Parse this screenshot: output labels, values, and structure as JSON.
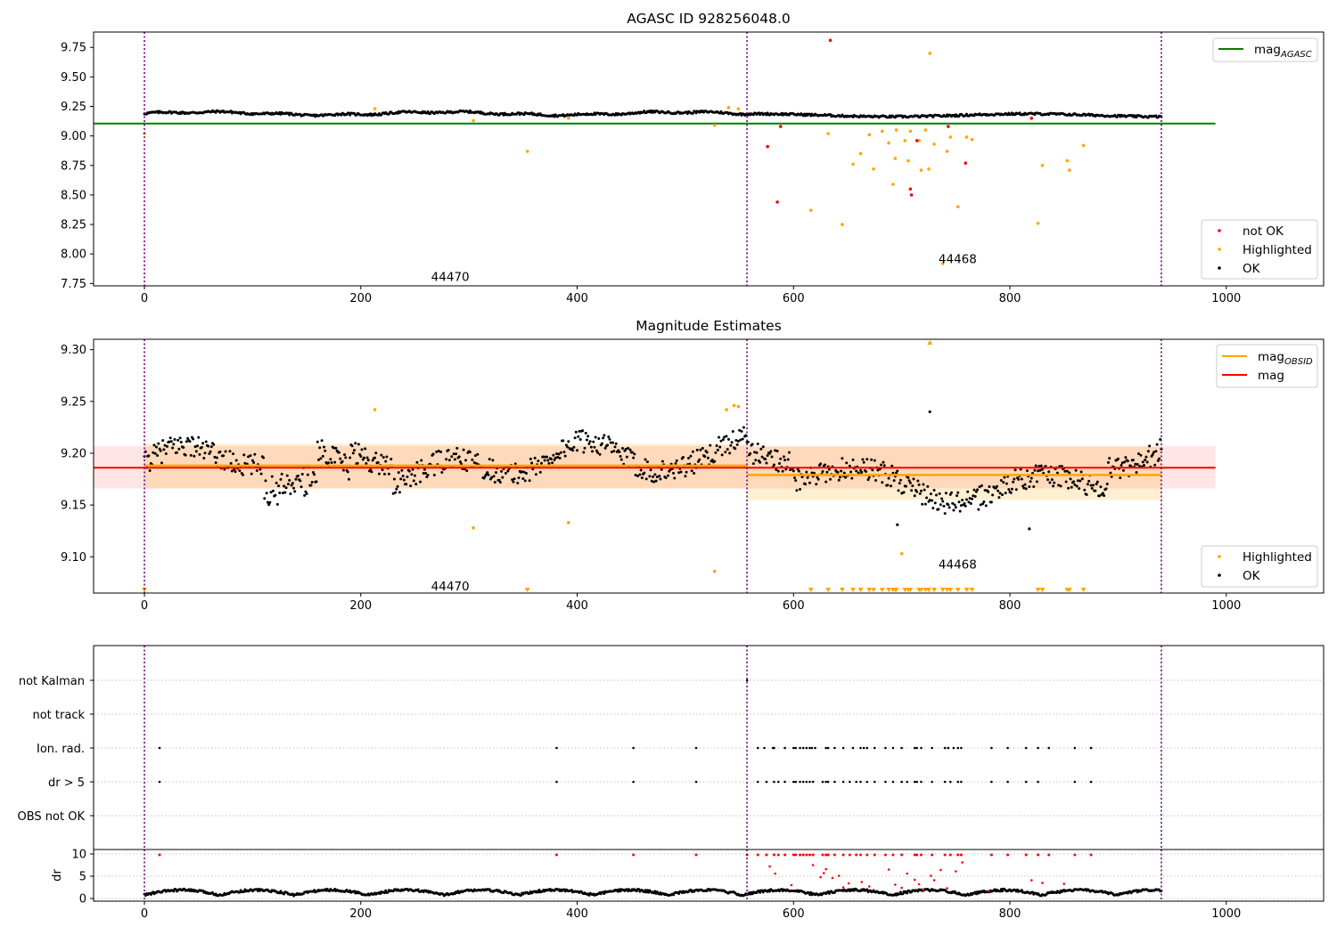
{
  "chart_data": [
    {
      "type": "scatter",
      "title": "AGASC ID 928256048.0",
      "xlim": [
        -47,
        1090
      ],
      "ylim": [
        7.73,
        9.88
      ],
      "xticks": [
        0,
        200,
        400,
        600,
        800,
        1000
      ],
      "yticks": [
        7.75,
        8.0,
        8.25,
        8.5,
        8.75,
        9.0,
        9.25,
        9.5,
        9.75
      ],
      "ytick_labels": [
        "7.75",
        "8.00",
        "8.25",
        "8.50",
        "8.75",
        "9.00",
        "9.25",
        "9.50",
        "9.75"
      ],
      "obs_boundaries": [
        0,
        557,
        940
      ],
      "obsid_labels": [
        {
          "x": 265,
          "y": 7.81,
          "text": "44470"
        },
        {
          "x": 734,
          "y": 7.96,
          "text": "44468"
        }
      ],
      "reference_line": {
        "name": "mag",
        "subscript": "AGASC",
        "value": 9.105,
        "x_range": [
          -47,
          990
        ],
        "color": "#008000"
      },
      "ok_band": {
        "amplitude": 0.025,
        "base_first": 9.195,
        "base_second": 9.19
      },
      "highlighted": [
        [
          0,
          9.02
        ],
        [
          213,
          9.23
        ],
        [
          304,
          9.13
        ],
        [
          354,
          8.87
        ],
        [
          392,
          9.15
        ],
        [
          527,
          9.09
        ],
        [
          540,
          9.24
        ],
        [
          549,
          9.23
        ],
        [
          616,
          8.37
        ],
        [
          632,
          9.02
        ],
        [
          645,
          8.25
        ],
        [
          655,
          8.76
        ],
        [
          662,
          8.85
        ],
        [
          670,
          9.01
        ],
        [
          674,
          8.72
        ],
        [
          682,
          9.04
        ],
        [
          688,
          8.94
        ],
        [
          692,
          8.59
        ],
        [
          694,
          8.81
        ],
        [
          695,
          9.05
        ],
        [
          703,
          8.96
        ],
        [
          706,
          8.79
        ],
        [
          708,
          9.04
        ],
        [
          716,
          8.96
        ],
        [
          718,
          8.71
        ],
        [
          722,
          9.05
        ],
        [
          725,
          8.72
        ],
        [
          726,
          9.7
        ],
        [
          730,
          8.93
        ],
        [
          738,
          7.92
        ],
        [
          742,
          8.87
        ],
        [
          745,
          8.99
        ],
        [
          752,
          8.4
        ],
        [
          760,
          8.99
        ],
        [
          765,
          8.97
        ],
        [
          826,
          8.26
        ],
        [
          830,
          8.75
        ],
        [
          853,
          8.79
        ],
        [
          855,
          8.71
        ],
        [
          868,
          8.92
        ]
      ],
      "not_ok": [
        [
          576,
          8.91
        ],
        [
          585,
          8.44
        ],
        [
          588,
          9.08
        ],
        [
          634,
          9.81
        ],
        [
          708,
          8.55
        ],
        [
          709,
          8.5
        ],
        [
          714,
          8.96
        ],
        [
          743,
          9.08
        ],
        [
          759,
          8.77
        ],
        [
          820,
          9.15
        ]
      ],
      "legend_right": {
        "items": [
          {
            "name": "mag",
            "subscript": "AGASC",
            "color": "#008000"
          }
        ]
      },
      "legend_lower": {
        "items": [
          {
            "name": "not OK",
            "color": "#ff0000"
          },
          {
            "name": "Highlighted",
            "color": "#ffa500"
          },
          {
            "name": "OK",
            "color": "#000000"
          }
        ]
      }
    },
    {
      "type": "scatter",
      "title": "Magnitude Estimates",
      "xlim": [
        -47,
        1090
      ],
      "ylim": [
        9.065,
        9.31
      ],
      "xticks": [
        0,
        200,
        400,
        600,
        800,
        1000
      ],
      "yticks": [
        9.1,
        9.15,
        9.2,
        9.25,
        9.3
      ],
      "ytick_labels": [
        "9.10",
        "9.15",
        "9.20",
        "9.25",
        "9.30"
      ],
      "obs_boundaries": [
        0,
        557,
        940
      ],
      "obsid_labels": [
        {
          "x": 265,
          "y": 9.072,
          "text": "44470"
        },
        {
          "x": 734,
          "y": 9.093,
          "text": "44468"
        }
      ],
      "mag_line": {
        "name": "mag",
        "value": 9.186,
        "band": [
          9.166,
          9.207
        ],
        "x_range": [
          -47,
          990
        ],
        "color": "#ff0000"
      },
      "obsid_segments": [
        {
          "name": "mag",
          "subscript": "OBSID",
          "x_range": [
            0,
            557
          ],
          "value": 9.188,
          "band": [
            9.166,
            9.209
          ],
          "color": "#ffa500"
        },
        {
          "name": "mag",
          "subscript": "OBSID",
          "x_range": [
            557,
            940
          ],
          "value": 9.179,
          "band": [
            9.155,
            9.206
          ],
          "color": "#ffa500"
        }
      ],
      "highlighted": [
        [
          213,
          9.242
        ],
        [
          304,
          9.128
        ],
        [
          392,
          9.133
        ],
        [
          527,
          9.086
        ],
        [
          538,
          9.242
        ],
        [
          545,
          9.246
        ],
        [
          549,
          9.245
        ],
        [
          700,
          9.103
        ]
      ],
      "extra_points_ok": [
        [
          726,
          9.24
        ],
        [
          818,
          9.127
        ],
        [
          696,
          9.131
        ]
      ],
      "upper_markers": [
        726
      ],
      "lower_markers": [
        0,
        354,
        616,
        632,
        645,
        655,
        662,
        670,
        674,
        682,
        688,
        692,
        694,
        695,
        703,
        706,
        708,
        716,
        718,
        722,
        725,
        730,
        738,
        742,
        745,
        752,
        760,
        765,
        826,
        830,
        853,
        855,
        868
      ],
      "legend_right": {
        "items": [
          {
            "name": "mag",
            "subscript": "OBSID",
            "color": "#ffa500"
          },
          {
            "name": "mag",
            "color": "#ff0000"
          }
        ]
      },
      "legend_lower": {
        "items": [
          {
            "name": "Highlighted",
            "color": "#ffa500"
          },
          {
            "name": "OK",
            "color": "#000000"
          }
        ]
      }
    },
    {
      "type": "scatter",
      "title": "",
      "xlim": [
        -47,
        1090
      ],
      "category_rows": [
        "not Kalman",
        "not track",
        "Ion. rad.",
        "dr > 5",
        "OBS not OK"
      ],
      "obs_boundaries": [
        0,
        557,
        940
      ],
      "not_kalman": [
        557
      ],
      "ion_rad": [
        14,
        381,
        452,
        510,
        567,
        573,
        581,
        582,
        592,
        600,
        602,
        606,
        609,
        612,
        615,
        617,
        620,
        630,
        632,
        638,
        646,
        655,
        662,
        665,
        668,
        675,
        685,
        692,
        700,
        712,
        714,
        718,
        728,
        740,
        743,
        748,
        752,
        755,
        783,
        798,
        815,
        826,
        836,
        860,
        875
      ],
      "dr_gt_5": [
        14,
        381,
        452,
        510,
        567,
        575,
        582,
        586,
        592,
        600,
        602,
        606,
        609,
        612,
        615,
        618,
        627,
        630,
        632,
        638,
        646,
        652,
        658,
        662,
        668,
        675,
        685,
        692,
        700,
        705,
        712,
        714,
        718,
        728,
        740,
        745,
        752,
        755,
        783,
        798,
        815,
        826,
        860,
        875
      ]
    },
    {
      "type": "scatter",
      "title": "",
      "xlim": [
        -47,
        1090
      ],
      "ylim": [
        -0.6,
        11
      ],
      "ylabel": "dr",
      "yticks": [
        0,
        5,
        10
      ],
      "ytick_labels": [
        "0",
        "5",
        "10"
      ],
      "xticks": [
        0,
        200,
        400,
        600,
        800,
        1000
      ],
      "obs_boundaries": [
        0,
        557,
        940
      ],
      "clip_value": 9.8,
      "clipped_x": [
        14,
        381,
        452,
        510,
        557,
        567,
        575,
        582,
        586,
        592,
        600,
        602,
        606,
        609,
        612,
        615,
        618,
        627,
        630,
        632,
        638,
        646,
        652,
        658,
        662,
        668,
        675,
        685,
        692,
        700,
        712,
        714,
        718,
        728,
        740,
        745,
        752,
        755,
        783,
        798,
        815,
        826,
        836,
        860,
        875
      ],
      "mid_red": [
        [
          578,
          7.2
        ],
        [
          583,
          5.6
        ],
        [
          598,
          3.0
        ],
        [
          618,
          7.5
        ],
        [
          625,
          4.8
        ],
        [
          628,
          5.7
        ],
        [
          630,
          6.6
        ],
        [
          636,
          4.6
        ],
        [
          642,
          5.1
        ],
        [
          646,
          2.5
        ],
        [
          651,
          3.4
        ],
        [
          663,
          3.7
        ],
        [
          670,
          2.7
        ],
        [
          688,
          6.5
        ],
        [
          694,
          3.1
        ],
        [
          700,
          2.4
        ],
        [
          705,
          5.6
        ],
        [
          712,
          4.2
        ],
        [
          716,
          3.2
        ],
        [
          720,
          1.9
        ],
        [
          727,
          5.1
        ],
        [
          730,
          4.1
        ],
        [
          736,
          6.4
        ],
        [
          742,
          2.3
        ],
        [
          750,
          6.1
        ],
        [
          756,
          8.1
        ],
        [
          780,
          1.7
        ],
        [
          820,
          4.1
        ],
        [
          830,
          3.5
        ],
        [
          850,
          3.3
        ]
      ]
    }
  ]
}
